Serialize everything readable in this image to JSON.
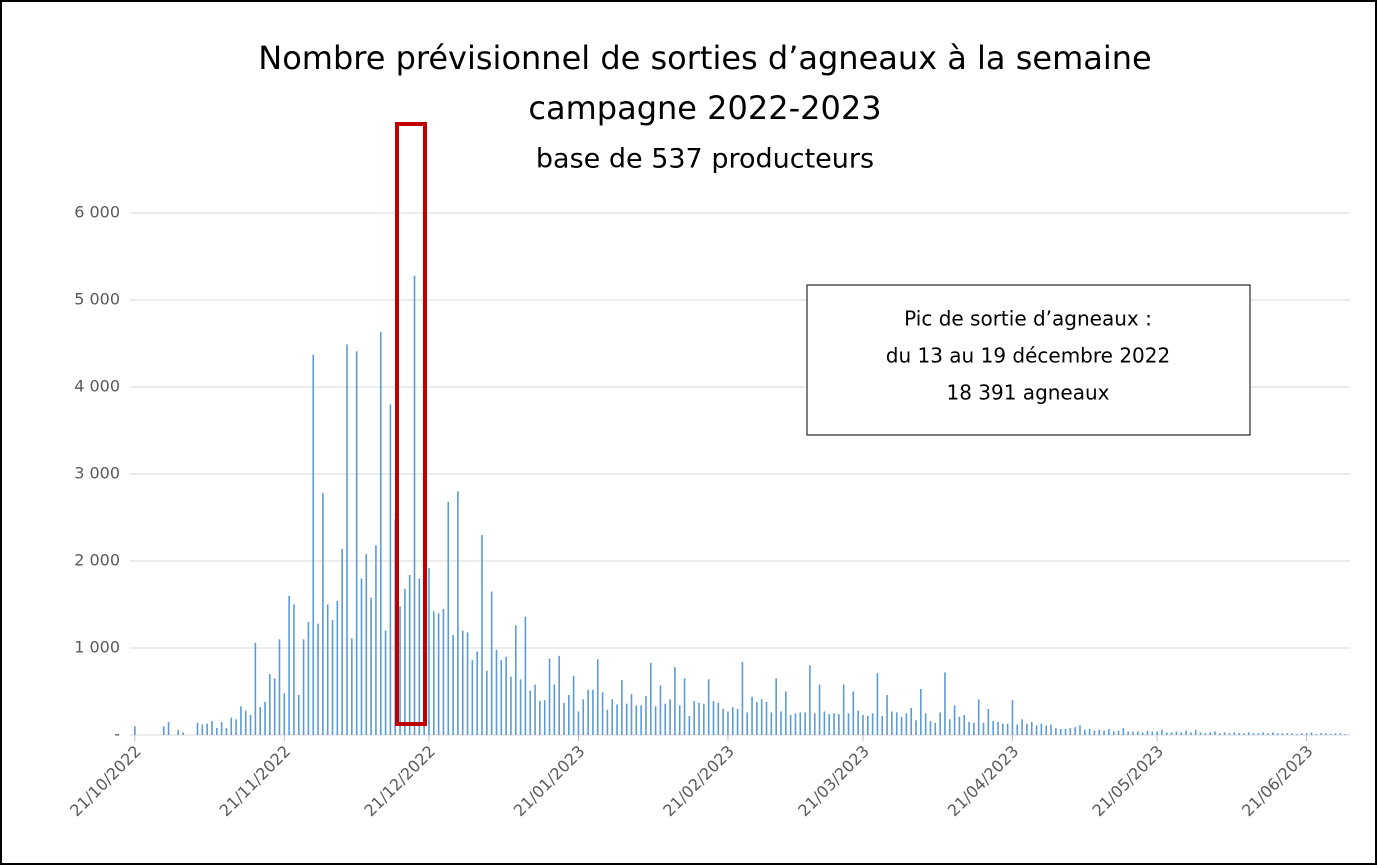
{
  "chart_data": {
    "type": "bar",
    "title": "Nombre prévisionnel de sorties d’agneaux à la semaine",
    "subtitle": [
      "campagne 2022-2023",
      "base de 537 producteurs"
    ],
    "annotation": [
      "Pic de sortie d’agneaux :",
      "du 13 au 19 décembre 2022",
      "18 391 agneaux"
    ],
    "color": "#5b9bd5",
    "xlim": [
      "20/10/2022",
      "30/06/2023"
    ],
    "xticks": [
      "21/10/2022",
      "21/11/2022",
      "21/12/2022",
      "21/01/2023",
      "21/02/2023",
      "21/03/2023",
      "21/04/2023",
      "21/05/2023",
      "21/06/2023"
    ],
    "ylim": [
      0,
      6000
    ],
    "yticks": [
      {
        "value": 0,
        "label": "-"
      },
      {
        "value": 1000,
        "label": "1 000"
      },
      {
        "value": 2000,
        "label": "2 000"
      },
      {
        "value": 3000,
        "label": "3 000"
      },
      {
        "value": 4000,
        "label": "4 000"
      },
      {
        "value": 5000,
        "label": "5 000"
      },
      {
        "value": 6000,
        "label": "6 000"
      }
    ],
    "grid": true,
    "x": [
      "21/10/2022",
      "27/10/2022",
      "28/10/2022",
      "30/10/2022",
      "31/10/2022",
      "03/11/2022",
      "04/11/2022",
      "05/11/2022",
      "06/11/2022",
      "07/11/2022",
      "08/11/2022",
      "09/11/2022",
      "10/11/2022",
      "11/11/2022",
      "12/11/2022",
      "13/11/2022",
      "14/11/2022",
      "15/11/2022",
      "16/11/2022",
      "17/11/2022",
      "18/11/2022",
      "19/11/2022",
      "20/11/2022",
      "21/11/2022",
      "22/11/2022",
      "23/11/2022",
      "24/11/2022",
      "25/11/2022",
      "26/11/2022",
      "27/11/2022",
      "28/11/2022",
      "29/11/2022",
      "30/11/2022",
      "01/12/2022",
      "02/12/2022",
      "03/12/2022",
      "04/12/2022",
      "05/12/2022",
      "06/12/2022",
      "07/12/2022",
      "08/12/2022",
      "09/12/2022",
      "10/12/2022",
      "11/12/2022",
      "12/12/2022",
      "13/12/2022",
      "14/12/2022",
      "15/12/2022",
      "16/12/2022",
      "17/12/2022",
      "18/12/2022",
      "19/12/2022",
      "20/12/2022",
      "21/12/2022",
      "22/12/2022",
      "23/12/2022",
      "24/12/2022",
      "25/12/2022",
      "26/12/2022",
      "27/12/2022",
      "28/12/2022",
      "29/12/2022",
      "30/12/2022",
      "31/12/2022",
      "01/01/2023",
      "02/01/2023",
      "03/01/2023",
      "04/01/2023",
      "05/01/2023",
      "06/01/2023",
      "07/01/2023",
      "08/01/2023",
      "09/01/2023",
      "10/01/2023",
      "11/01/2023",
      "12/01/2023",
      "13/01/2023",
      "14/01/2023",
      "15/01/2023",
      "16/01/2023",
      "17/01/2023",
      "18/01/2023",
      "19/01/2023",
      "20/01/2023",
      "21/01/2023",
      "22/01/2023",
      "23/01/2023",
      "24/01/2023",
      "25/01/2023",
      "26/01/2023",
      "27/01/2023",
      "28/01/2023",
      "29/01/2023",
      "30/01/2023",
      "31/01/2023",
      "01/02/2023",
      "02/02/2023",
      "03/02/2023",
      "04/02/2023",
      "05/02/2023",
      "06/02/2023",
      "07/02/2023",
      "08/02/2023",
      "09/02/2023",
      "10/02/2023",
      "11/02/2023",
      "12/02/2023",
      "13/02/2023",
      "14/02/2023",
      "15/02/2023",
      "16/02/2023",
      "17/02/2023",
      "18/02/2023",
      "19/02/2023",
      "20/02/2023",
      "21/02/2023",
      "22/02/2023",
      "23/02/2023",
      "24/02/2023",
      "25/02/2023",
      "26/02/2023",
      "27/02/2023",
      "28/02/2023",
      "01/03/2023",
      "02/03/2023",
      "03/03/2023",
      "04/03/2023",
      "05/03/2023",
      "06/03/2023",
      "07/03/2023",
      "08/03/2023",
      "09/03/2023",
      "10/03/2023",
      "11/03/2023",
      "12/03/2023",
      "13/03/2023",
      "14/03/2023",
      "15/03/2023",
      "16/03/2023",
      "17/03/2023",
      "18/03/2023",
      "19/03/2023",
      "20/03/2023",
      "21/03/2023",
      "22/03/2023",
      "23/03/2023",
      "24/03/2023",
      "25/03/2023",
      "26/03/2023",
      "27/03/2023",
      "28/03/2023",
      "29/03/2023",
      "30/03/2023",
      "31/03/2023",
      "01/04/2023",
      "02/04/2023",
      "03/04/2023",
      "04/04/2023",
      "05/04/2023",
      "06/04/2023",
      "07/04/2023",
      "08/04/2023",
      "09/04/2023",
      "10/04/2023",
      "11/04/2023",
      "12/04/2023",
      "13/04/2023",
      "14/04/2023",
      "15/04/2023",
      "16/04/2023",
      "17/04/2023",
      "18/04/2023",
      "19/04/2023",
      "20/04/2023",
      "21/04/2023",
      "22/04/2023",
      "23/04/2023",
      "24/04/2023",
      "25/04/2023",
      "26/04/2023",
      "27/04/2023",
      "28/04/2023",
      "29/04/2023",
      "30/04/2023",
      "01/05/2023",
      "02/05/2023",
      "03/05/2023",
      "04/05/2023",
      "05/05/2023",
      "06/05/2023",
      "07/05/2023",
      "08/05/2023",
      "09/05/2023",
      "10/05/2023",
      "11/05/2023",
      "12/05/2023",
      "13/05/2023",
      "14/05/2023",
      "15/05/2023",
      "16/05/2023",
      "17/05/2023",
      "18/05/2023",
      "19/05/2023",
      "20/05/2023",
      "21/05/2023",
      "22/05/2023",
      "23/05/2023",
      "24/05/2023",
      "25/05/2023",
      "26/05/2023",
      "27/05/2023",
      "28/05/2023",
      "29/05/2023",
      "30/05/2023",
      "31/05/2023",
      "01/06/2023",
      "02/06/2023",
      "03/06/2023",
      "04/06/2023",
      "05/06/2023",
      "06/06/2023",
      "07/06/2023",
      "08/06/2023",
      "09/06/2023",
      "10/06/2023",
      "11/06/2023",
      "12/06/2023",
      "13/06/2023",
      "14/06/2023",
      "15/06/2023",
      "16/06/2023",
      "17/06/2023",
      "18/06/2023",
      "19/06/2023",
      "20/06/2023",
      "21/06/2023",
      "22/06/2023",
      "23/06/2023",
      "24/06/2023",
      "25/06/2023",
      "26/06/2023",
      "27/06/2023",
      "28/06/2023",
      "29/06/2023"
    ],
    "values": [
      100,
      100,
      150,
      60,
      30,
      140,
      120,
      130,
      160,
      80,
      150,
      80,
      200,
      180,
      330,
      280,
      230,
      1060,
      320,
      380,
      700,
      650,
      1100,
      480,
      1600,
      1500,
      460,
      1100,
      1300,
      4370,
      1280,
      2780,
      1500,
      1320,
      1540,
      2140,
      4490,
      1110,
      4410,
      1800,
      2080,
      1580,
      2180,
      4630,
      1200,
      3800,
      2480,
      1480,
      1680,
      1840,
      5280,
      1800,
      1860,
      1920,
      1420,
      1400,
      1450,
      2680,
      1150,
      2800,
      1200,
      1180,
      860,
      960,
      2300,
      740,
      1650,
      980,
      860,
      900,
      670,
      1260,
      640,
      1360,
      510,
      580,
      390,
      400,
      880,
      580,
      910,
      370,
      460,
      680,
      270,
      410,
      520,
      520,
      870,
      490,
      290,
      410,
      350,
      630,
      360,
      470,
      340,
      340,
      450,
      830,
      330,
      570,
      360,
      410,
      780,
      340,
      650,
      220,
      390,
      370,
      360,
      640,
      390,
      370,
      300,
      270,
      320,
      300,
      840,
      260,
      440,
      380,
      410,
      380,
      260,
      650,
      270,
      500,
      230,
      250,
      260,
      260,
      800,
      250,
      580,
      270,
      240,
      250,
      240,
      580,
      250,
      500,
      280,
      230,
      220,
      250,
      710,
      220,
      460,
      270,
      260,
      210,
      250,
      310,
      170,
      530,
      250,
      160,
      140,
      260,
      720,
      180,
      340,
      210,
      230,
      150,
      140,
      410,
      140,
      300,
      160,
      150,
      130,
      130,
      400,
      120,
      180,
      130,
      150,
      110,
      130,
      110,
      120,
      80,
      70,
      70,
      80,
      90,
      110,
      60,
      70,
      50,
      60,
      50,
      70,
      40,
      50,
      80,
      40,
      40,
      40,
      30,
      50,
      40,
      40,
      60,
      30,
      30,
      40,
      30,
      50,
      30,
      60,
      30,
      20,
      30,
      40,
      20,
      30,
      20,
      30,
      20,
      20,
      30,
      20,
      20,
      30,
      20,
      30,
      20,
      20,
      20,
      20,
      10,
      20,
      20,
      30,
      10,
      20,
      20,
      10,
      20,
      20,
      10
    ]
  }
}
